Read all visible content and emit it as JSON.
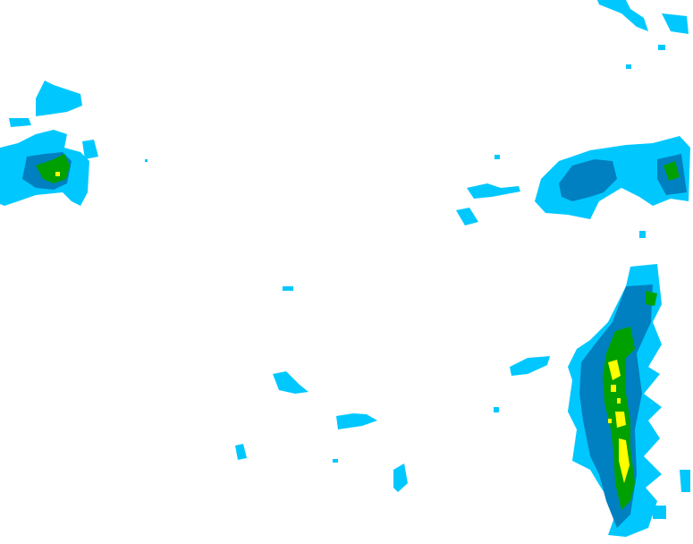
{
  "map": {
    "colors": {
      "light": "#00c8ff",
      "moderate": "#0080c0",
      "heavy": "#00a000",
      "intense": "#ffff00"
    }
  }
}
